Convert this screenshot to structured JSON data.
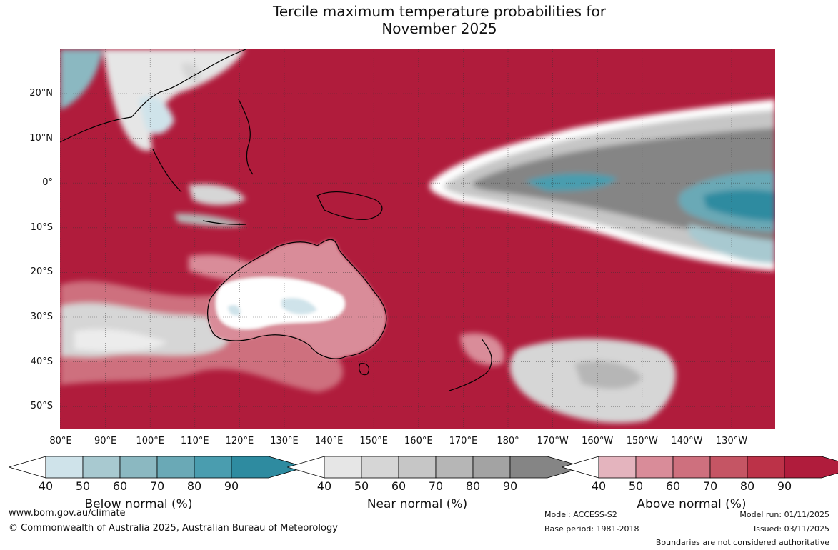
{
  "title_line1": "Tercile maximum temperature probabilities for",
  "title_line2": "November 2025",
  "lat_labels": [
    "20°N",
    "10°N",
    "0°",
    "10°S",
    "20°S",
    "30°S",
    "40°S",
    "50°S"
  ],
  "lon_labels": [
    "80°E",
    "90°E",
    "100°E",
    "110°E",
    "120°E",
    "130°E",
    "140°E",
    "150°E",
    "160°E",
    "170°E",
    "180°",
    "170°W",
    "160°W",
    "150°W",
    "140°W",
    "130°W"
  ],
  "colorbars": [
    {
      "title": "Below normal (%)",
      "ticks": [
        "40",
        "50",
        "60",
        "70",
        "80",
        "90"
      ],
      "colors": [
        "#cfe3ea",
        "#a8c9d0",
        "#8bb8c1",
        "#6aa9b6",
        "#4a9daf",
        "#2e8ba0"
      ]
    },
    {
      "title": "Near normal (%)",
      "ticks": [
        "40",
        "50",
        "60",
        "70",
        "80",
        "90"
      ],
      "colors": [
        "#e6e6e6",
        "#d6d6d6",
        "#c6c6c6",
        "#b6b6b6",
        "#a3a3a3",
        "#858585"
      ]
    },
    {
      "title": "Above normal (%)",
      "ticks": [
        "40",
        "50",
        "60",
        "70",
        "80",
        "90"
      ],
      "colors": [
        "#e4b4be",
        "#d98c99",
        "#ce707e",
        "#c55564",
        "#bc3248",
        "#b01c3c"
      ]
    }
  ],
  "footer": {
    "url": "www.bom.gov.au/climate",
    "copyright": "© Commonwealth of Australia 2025, Australian Bureau of Meteorology",
    "model": "Model: ACCESS-S2",
    "base_period": "Base period: 1981-2018",
    "model_run": "Model run: 01/11/2025",
    "issued": "Issued: 03/11/2025",
    "disclaimer": "Boundaries are not considered authoritative"
  },
  "colors": {
    "above90": "#b01c3c",
    "near90": "#858585",
    "below90": "#2e8ba0",
    "white": "#ffffff"
  }
}
